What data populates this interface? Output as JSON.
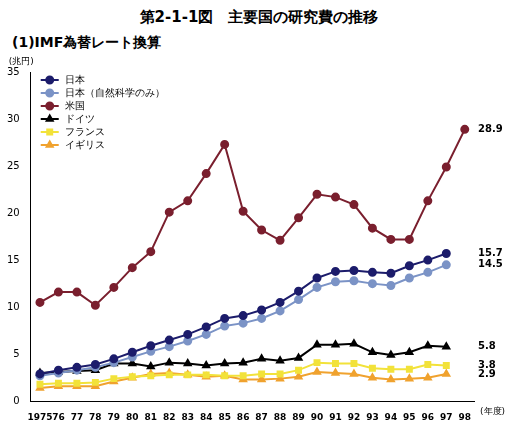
{
  "chart_data": {
    "type": "line",
    "title": "第2-1-1図　主要国の研究費の推移",
    "subtitle": "(1)IMF為替レート換算",
    "y_label": "(兆円)",
    "x_label": "(年度)",
    "categories": [
      "1975",
      "76",
      "77",
      "78",
      "79",
      "80",
      "81",
      "82",
      "83",
      "84",
      "85",
      "86",
      "87",
      "88",
      "89",
      "90",
      "91",
      "92",
      "93",
      "94",
      "95",
      "96",
      "97",
      "98"
    ],
    "ylim": [
      0,
      35
    ],
    "yticks": [
      0,
      5,
      10,
      15,
      20,
      25,
      30,
      35
    ],
    "grid": false,
    "legend": "upper left",
    "series": [
      {
        "name": "日本",
        "color": "#1c1c6b",
        "marker": "circle",
        "values": [
          2.9,
          3.3,
          3.6,
          3.9,
          4.5,
          5.2,
          5.9,
          6.5,
          7.1,
          7.9,
          8.8,
          9.1,
          9.7,
          10.5,
          11.7,
          13.1,
          13.8,
          13.9,
          13.7,
          13.6,
          14.4,
          15.0,
          15.7,
          null
        ],
        "value_labels": [
          null,
          null,
          null,
          null,
          null,
          null,
          null,
          null,
          null,
          null,
          null,
          null,
          null,
          null,
          null,
          null,
          null,
          null,
          null,
          null,
          null,
          null,
          "15.7",
          null
        ]
      },
      {
        "name": "日本（自然科学のみ）",
        "color": "#7b93c6",
        "marker": "circle",
        "values": [
          2.7,
          3.0,
          3.3,
          3.6,
          4.1,
          4.7,
          5.3,
          5.8,
          6.4,
          7.1,
          8.0,
          8.3,
          8.8,
          9.6,
          10.8,
          12.1,
          12.7,
          12.8,
          12.5,
          12.3,
          13.1,
          13.7,
          14.5,
          null
        ],
        "value_labels": [
          null,
          null,
          null,
          null,
          null,
          null,
          null,
          null,
          null,
          null,
          null,
          null,
          null,
          null,
          null,
          null,
          null,
          null,
          null,
          null,
          null,
          null,
          "14.5",
          null
        ]
      },
      {
        "name": "米国",
        "color": "#7a1f2e",
        "marker": "circle",
        "values": [
          10.5,
          11.6,
          11.6,
          10.2,
          12.1,
          14.2,
          15.9,
          20.1,
          21.3,
          24.2,
          27.3,
          20.2,
          18.2,
          17.1,
          19.5,
          22.0,
          21.7,
          20.9,
          18.4,
          17.2,
          17.2,
          21.3,
          24.9,
          28.9
        ],
        "value_labels": [
          null,
          null,
          null,
          null,
          null,
          null,
          null,
          null,
          null,
          null,
          null,
          null,
          null,
          null,
          null,
          null,
          null,
          null,
          null,
          null,
          null,
          null,
          null,
          "28.9"
        ]
      },
      {
        "name": "ドイツ",
        "color": "#000000",
        "marker": "triangle",
        "values": [
          3.0,
          3.1,
          3.2,
          3.3,
          4.0,
          4.0,
          3.7,
          4.1,
          4.0,
          3.8,
          4.0,
          4.1,
          4.5,
          4.3,
          4.6,
          6.0,
          6.0,
          6.1,
          5.2,
          4.9,
          5.2,
          5.9,
          5.8,
          null
        ],
        "value_labels": [
          null,
          null,
          null,
          null,
          null,
          null,
          null,
          null,
          null,
          null,
          null,
          null,
          null,
          null,
          null,
          null,
          null,
          null,
          null,
          null,
          null,
          null,
          "5.8",
          null
        ]
      },
      {
        "name": "フランス",
        "color": "#f2e23a",
        "marker": "square",
        "values": [
          1.8,
          1.9,
          1.9,
          2.0,
          2.4,
          2.6,
          2.7,
          2.8,
          2.8,
          2.8,
          2.7,
          2.7,
          2.9,
          2.9,
          3.3,
          4.1,
          4.0,
          4.0,
          3.5,
          3.4,
          3.4,
          3.9,
          3.8,
          null
        ],
        "value_labels": [
          null,
          null,
          null,
          null,
          null,
          null,
          null,
          null,
          null,
          null,
          null,
          null,
          null,
          null,
          null,
          null,
          null,
          null,
          null,
          null,
          null,
          null,
          "3.8",
          null
        ]
      },
      {
        "name": "イギリス",
        "color": "#f0a22e",
        "marker": "triangle",
        "values": [
          1.4,
          1.6,
          1.6,
          1.6,
          2.1,
          2.5,
          2.9,
          3.0,
          2.8,
          2.6,
          2.7,
          2.3,
          2.3,
          2.4,
          2.6,
          3.1,
          3.0,
          2.9,
          2.5,
          2.3,
          2.4,
          2.5,
          2.9,
          null
        ],
        "value_labels": [
          null,
          null,
          null,
          null,
          null,
          null,
          null,
          null,
          null,
          null,
          null,
          null,
          null,
          null,
          null,
          null,
          null,
          null,
          null,
          null,
          null,
          null,
          "2.9",
          null
        ]
      }
    ]
  }
}
